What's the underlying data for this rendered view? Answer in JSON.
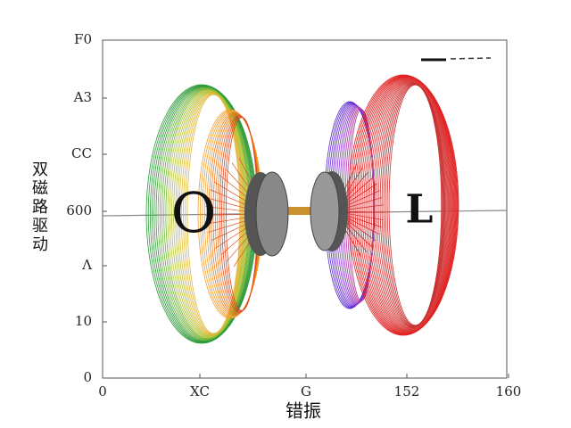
{
  "y_axis": {
    "label": "双磁路驱动",
    "ticks": [
      "F0",
      "A3",
      "CC",
      "600",
      "Λ",
      "10",
      "0"
    ]
  },
  "x_axis": {
    "label": "错振",
    "ticks": [
      "0",
      "XC",
      "G",
      "152",
      "160"
    ]
  },
  "annotations": [
    "O",
    "L"
  ]
}
